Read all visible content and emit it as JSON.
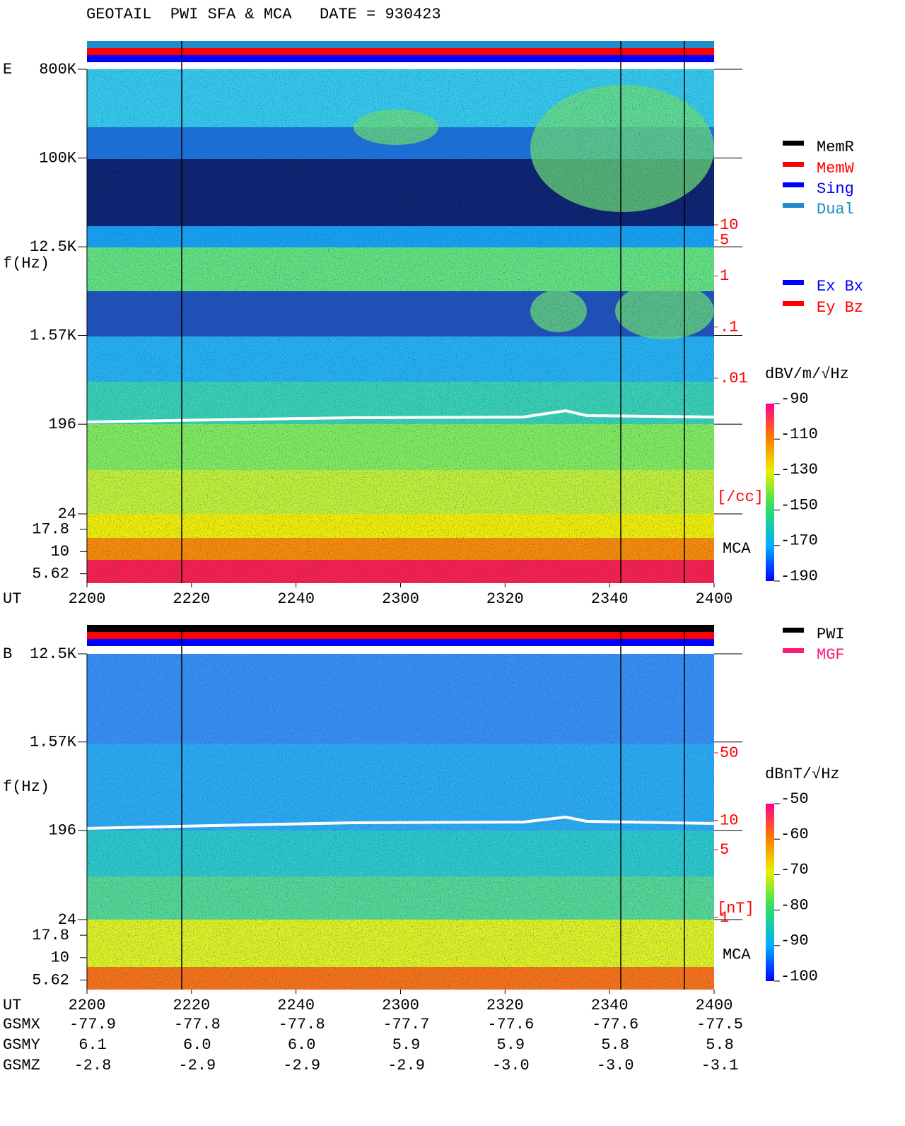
{
  "title": "GEOTAIL  PWI SFA & MCA   DATE = 930423",
  "chart_data": [
    {
      "type": "spectrogram",
      "panel": "E",
      "y_label": "f(Hz)",
      "x_label": "UT",
      "log_scale": true,
      "ylim": [
        24,
        800000
      ],
      "yticks": [
        {
          "value": 800000,
          "label": "800K"
        },
        {
          "value": 100000,
          "label": "100K"
        },
        {
          "value": 12500,
          "label": "12.5K"
        },
        {
          "value": 1570,
          "label": "1.57K"
        },
        196,
        24
      ],
      "mca_label": "MCA",
      "mca_ylim": [
        4.4,
        26.6
      ],
      "mca_yticks": [
        17.8,
        10,
        5.62
      ],
      "xticks": [
        "2200",
        "2220",
        "2240",
        "2300",
        "2320",
        "2340",
        "2400"
      ],
      "colorbar": {
        "label": "dBV/m/√Hz",
        "ylim": [
          -190,
          -90
        ],
        "yticks": [
          -90,
          -110,
          -130,
          -150,
          -170,
          -190
        ]
      },
      "y2_label": "[/cc]",
      "y2lim": [
        0.01,
        10
      ],
      "y2ticks": [
        10,
        5,
        1,
        {
          "value": 0.1,
          "label": ".1"
        },
        {
          "value": 0.01,
          "label": ".01"
        }
      ],
      "legends": [
        [
          {
            "name": "MemR",
            "color": "#000000"
          },
          {
            "name": "MemW",
            "color": "#ff0000"
          },
          {
            "name": "Sing",
            "color": "#0000ff"
          },
          {
            "name": "Dual",
            "color": "#1e8cc8"
          }
        ],
        [
          {
            "name": "Ex Bx",
            "color": "#0000ff"
          },
          {
            "name": "Ey Bz",
            "color": "#ff0000"
          }
        ]
      ]
    },
    {
      "type": "spectrogram",
      "panel": "B",
      "y_label": "f(Hz)",
      "x_label": "UT",
      "log_scale": true,
      "ylim": [
        24,
        12500
      ],
      "yticks": [
        {
          "value": 12500,
          "label": "12.5K"
        },
        {
          "value": 1570,
          "label": "1.57K"
        },
        196,
        24
      ],
      "mca_label": "MCA",
      "mca_ylim": [
        4.4,
        26.6
      ],
      "mca_yticks": [
        17.8,
        10,
        5.62
      ],
      "xticks": [
        "2200",
        "2220",
        "2240",
        "2300",
        "2320",
        "2340",
        "2400"
      ],
      "colorbar": {
        "label": "dBnT/√Hz",
        "ylim": [
          -100,
          -50
        ],
        "yticks": [
          -50,
          -60,
          -70,
          -80,
          -90,
          -100
        ]
      },
      "y2_label": "[nT]",
      "y2lim": [
        1,
        50
      ],
      "y2ticks": [
        50,
        10,
        5,
        1
      ],
      "legends": [
        [
          {
            "name": "PWI",
            "color": "#000000"
          },
          {
            "name": "MGF",
            "color": "#ff1a7a"
          }
        ]
      ]
    }
  ],
  "orbit": {
    "rows": [
      {
        "label": "GSMX",
        "values": [
          "-77.9",
          "-77.8",
          "-77.8",
          "-77.7",
          "-77.6",
          "-77.6",
          "-77.5"
        ]
      },
      {
        "label": "GSMY",
        "values": [
          "6.1",
          "6.0",
          "6.0",
          "5.9",
          "5.9",
          "5.8",
          "5.8"
        ]
      },
      {
        "label": "GSMZ",
        "values": [
          "-2.8",
          "-2.9",
          "-2.9",
          "-2.9",
          "-3.0",
          "-3.0",
          "-3.1"
        ]
      }
    ]
  }
}
